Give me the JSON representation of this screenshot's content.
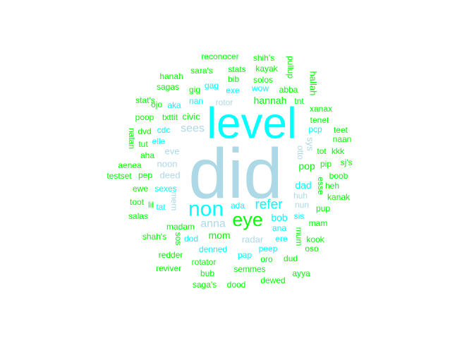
{
  "chart_data": {
    "type": "wordcloud",
    "title": "",
    "colors": {
      "large": "#ADD8E6",
      "medium": "#00FFFF",
      "small": "#00FF00"
    },
    "words": [
      {
        "text": "did",
        "freq": 100,
        "color": "#ADD8E6"
      },
      {
        "text": "level",
        "freq": 72,
        "color": "#00FFFF"
      },
      {
        "text": "non",
        "freq": 34,
        "color": "#00FFFF"
      },
      {
        "text": "eye",
        "freq": 30,
        "color": "#00FF00"
      },
      {
        "text": "refer",
        "freq": 21,
        "color": "#00FFFF"
      },
      {
        "text": "sees",
        "freq": 16,
        "color": "#ADD8E6"
      },
      {
        "text": "anna",
        "freq": 16,
        "color": "#ADD8E6"
      },
      {
        "text": "hannah",
        "freq": 14,
        "color": "#00FF00"
      },
      {
        "text": "mom",
        "freq": 14,
        "color": "#00FF00"
      },
      {
        "text": "bob",
        "freq": 14,
        "color": "#00FFFF"
      },
      {
        "text": "pop",
        "freq": 14,
        "color": "#00FF00"
      },
      {
        "text": "dad",
        "freq": 14,
        "color": "#00FFFF"
      },
      {
        "text": "civic",
        "freq": 12,
        "color": "#00FF00"
      },
      {
        "text": "radar",
        "freq": 12,
        "color": "#ADD8E6"
      },
      {
        "text": "eve",
        "freq": 12,
        "color": "#ADD8E6"
      },
      {
        "text": "noon",
        "freq": 12,
        "color": "#ADD8E6"
      },
      {
        "text": "deed",
        "freq": 12,
        "color": "#ADD8E6"
      },
      {
        "text": "hallah",
        "freq": 11,
        "color": "#00FF00"
      },
      {
        "text": "sys",
        "freq": 11,
        "color": "#ADD8E6"
      },
      {
        "text": "otto",
        "freq": 11,
        "color": "#ADD8E6"
      },
      {
        "text": "ana",
        "freq": 11,
        "color": "#00FFFF"
      },
      {
        "text": "reconocer",
        "freq": 10,
        "color": "#00FF00"
      },
      {
        "text": "shih's",
        "freq": 10,
        "color": "#00FF00"
      },
      {
        "text": "pullup",
        "freq": 10,
        "color": "#00FF00"
      },
      {
        "text": "sara's",
        "freq": 10,
        "color": "#00FF00"
      },
      {
        "text": "stats",
        "freq": 10,
        "color": "#00FF00"
      },
      {
        "text": "kayak",
        "freq": 10,
        "color": "#00FF00"
      },
      {
        "text": "hanah",
        "freq": 10,
        "color": "#00FF00"
      },
      {
        "text": "bib",
        "freq": 10,
        "color": "#00FF00"
      },
      {
        "text": "solos",
        "freq": 10,
        "color": "#00FF00"
      },
      {
        "text": "sagas",
        "freq": 10,
        "color": "#00FF00"
      },
      {
        "text": "gig",
        "freq": 10,
        "color": "#00FF00"
      },
      {
        "text": "gag",
        "freq": 10,
        "color": "#00FFFF"
      },
      {
        "text": "exe",
        "freq": 10,
        "color": "#00FFFF"
      },
      {
        "text": "wow",
        "freq": 10,
        "color": "#00FFFF"
      },
      {
        "text": "abba",
        "freq": 10,
        "color": "#00FF00"
      },
      {
        "text": "stat's",
        "freq": 10,
        "color": "#00FF00"
      },
      {
        "text": "nan",
        "freq": 10,
        "color": "#00FFFF"
      },
      {
        "text": "rotor",
        "freq": 10,
        "color": "#ADD8E6"
      },
      {
        "text": "tnt",
        "freq": 10,
        "color": "#00FF00"
      },
      {
        "text": "ojo",
        "freq": 10,
        "color": "#00FF00"
      },
      {
        "text": "aka",
        "freq": 10,
        "color": "#00FFFF"
      },
      {
        "text": "xanax",
        "freq": 10,
        "color": "#00FF00"
      },
      {
        "text": "poop",
        "freq": 10,
        "color": "#00FF00"
      },
      {
        "text": "txttit",
        "freq": 10,
        "color": "#00FF00"
      },
      {
        "text": "tenet",
        "freq": 10,
        "color": "#00FF00"
      },
      {
        "text": "natan",
        "freq": 10,
        "color": "#00FF00"
      },
      {
        "text": "dvd",
        "freq": 10,
        "color": "#00FF00"
      },
      {
        "text": "cdc",
        "freq": 10,
        "color": "#00FFFF"
      },
      {
        "text": "pcp",
        "freq": 10,
        "color": "#00FFFF"
      },
      {
        "text": "teet",
        "freq": 10,
        "color": "#00FF00"
      },
      {
        "text": "tut",
        "freq": 10,
        "color": "#00FF00"
      },
      {
        "text": "elle",
        "freq": 10,
        "color": "#00FFFF"
      },
      {
        "text": "naan",
        "freq": 10,
        "color": "#00FF00"
      },
      {
        "text": "aha",
        "freq": 10,
        "color": "#00FF00"
      },
      {
        "text": "tot",
        "freq": 10,
        "color": "#00FF00"
      },
      {
        "text": "kkk",
        "freq": 10,
        "color": "#00FF00"
      },
      {
        "text": "aenea",
        "freq": 10,
        "color": "#00FF00"
      },
      {
        "text": "pip",
        "freq": 10,
        "color": "#00FF00"
      },
      {
        "text": "sj's",
        "freq": 10,
        "color": "#00FF00"
      },
      {
        "text": "testset",
        "freq": 10,
        "color": "#00FF00"
      },
      {
        "text": "pep",
        "freq": 10,
        "color": "#00FF00"
      },
      {
        "text": "boob",
        "freq": 10,
        "color": "#00FF00"
      },
      {
        "text": "esse",
        "freq": 10,
        "color": "#00FF00"
      },
      {
        "text": "heh",
        "freq": 10,
        "color": "#00FF00"
      },
      {
        "text": "ewe",
        "freq": 10,
        "color": "#00FF00"
      },
      {
        "text": "sexes",
        "freq": 10,
        "color": "#00FFFF"
      },
      {
        "text": "huh",
        "freq": 10,
        "color": "#ADD8E6"
      },
      {
        "text": "kanak",
        "freq": 10,
        "color": "#00FF00"
      },
      {
        "text": "toot",
        "freq": 10,
        "color": "#00FF00"
      },
      {
        "text": "lil",
        "freq": 10,
        "color": "#00FF00"
      },
      {
        "text": "tat",
        "freq": 10,
        "color": "#00FFFF"
      },
      {
        "text": "mem",
        "freq": 10,
        "color": "#ADD8E6"
      },
      {
        "text": "ada",
        "freq": 10,
        "color": "#00FFFF"
      },
      {
        "text": "nun",
        "freq": 10,
        "color": "#ADD8E6"
      },
      {
        "text": "pup",
        "freq": 10,
        "color": "#00FF00"
      },
      {
        "text": "salas",
        "freq": 10,
        "color": "#00FF00"
      },
      {
        "text": "sis",
        "freq": 10,
        "color": "#00FFFF"
      },
      {
        "text": "madam",
        "freq": 10,
        "color": "#00FF00"
      },
      {
        "text": "mam",
        "freq": 10,
        "color": "#00FF00"
      },
      {
        "text": "mum",
        "freq": 10,
        "color": "#00FF00"
      },
      {
        "text": "shah's",
        "freq": 10,
        "color": "#00FF00"
      },
      {
        "text": "sos",
        "freq": 10,
        "color": "#00FF00"
      },
      {
        "text": "dod",
        "freq": 10,
        "color": "#00FFFF"
      },
      {
        "text": "ere",
        "freq": 10,
        "color": "#00FFFF"
      },
      {
        "text": "kook",
        "freq": 10,
        "color": "#00FF00"
      },
      {
        "text": "denned",
        "freq": 10,
        "color": "#00FFFF"
      },
      {
        "text": "peep",
        "freq": 10,
        "color": "#00FFFF"
      },
      {
        "text": "oso",
        "freq": 10,
        "color": "#00FF00"
      },
      {
        "text": "redder",
        "freq": 10,
        "color": "#00FF00"
      },
      {
        "text": "pap",
        "freq": 10,
        "color": "#00FFFF"
      },
      {
        "text": "oro",
        "freq": 10,
        "color": "#00FF00"
      },
      {
        "text": "dud",
        "freq": 10,
        "color": "#00FF00"
      },
      {
        "text": "rotator",
        "freq": 10,
        "color": "#00FF00"
      },
      {
        "text": "reviver",
        "freq": 10,
        "color": "#00FF00"
      },
      {
        "text": "semmes",
        "freq": 10,
        "color": "#00FF00"
      },
      {
        "text": "ayya",
        "freq": 10,
        "color": "#00FF00"
      },
      {
        "text": "bub",
        "freq": 10,
        "color": "#00FF00"
      },
      {
        "text": "dewed",
        "freq": 10,
        "color": "#00FF00"
      },
      {
        "text": "saga's",
        "freq": 10,
        "color": "#00FF00"
      },
      {
        "text": "dood",
        "freq": 10,
        "color": "#00FF00"
      }
    ]
  }
}
